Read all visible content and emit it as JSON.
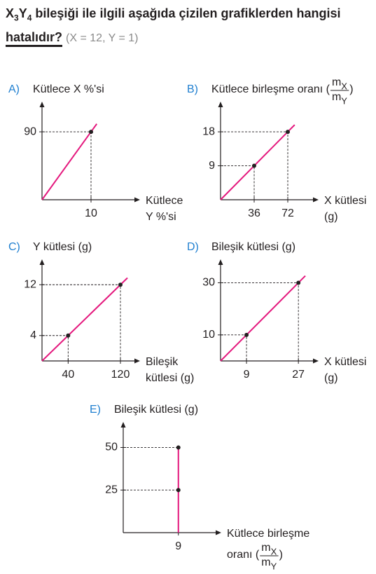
{
  "question": {
    "formula": [
      "X",
      "3",
      "Y",
      "4"
    ],
    "text": " bileşiği ile ilgili aşağıda çizilen grafiklerden hangisi",
    "emphasis": "hatalıdır?",
    "note": "(X = 12, Y = 1)"
  },
  "chart_data": [
    {
      "type": "line",
      "option": "A)",
      "y_label": "Kütlece X %'si",
      "x_label": [
        "Kütlece",
        "Y %'si"
      ],
      "x": [
        0,
        10
      ],
      "series": [
        {
          "color": "#e4187d",
          "values": [
            0,
            90
          ]
        }
      ],
      "xlim": [
        0,
        20
      ],
      "ylim": [
        0,
        130
      ],
      "xticks": [
        10
      ],
      "yticks": [
        90
      ]
    },
    {
      "type": "line",
      "option": "B)",
      "y_label": "Kütlece birleşme oranı (",
      "y_label_ratio": {
        "top": [
          "m",
          "X"
        ],
        "bottom": [
          "m",
          "Y"
        ]
      },
      "y_label_end": ")",
      "x_label": [
        "X kütlesi",
        "(g)"
      ],
      "x": [
        0,
        36,
        72
      ],
      "series": [
        {
          "color": "#e4187d",
          "values": [
            0,
            9,
            18
          ]
        }
      ],
      "xlim": [
        0,
        105
      ],
      "ylim": [
        0,
        26
      ],
      "xticks": [
        36,
        72
      ],
      "yticks": [
        9,
        18
      ]
    },
    {
      "type": "line",
      "option": "C)",
      "y_label": "Y kütlesi (g)",
      "x_label": [
        "Bileşik",
        "kütlesi (g)"
      ],
      "x": [
        0,
        40,
        120
      ],
      "series": [
        {
          "color": "#e4187d",
          "values": [
            0,
            4,
            12
          ]
        }
      ],
      "xlim": [
        0,
        150
      ],
      "ylim": [
        0,
        16
      ],
      "xticks": [
        40,
        120
      ],
      "yticks": [
        4,
        12
      ]
    },
    {
      "type": "line",
      "option": "D)",
      "y_label": "Bileşik kütlesi (g)",
      "x_label": [
        "X kütlesi",
        "(g)"
      ],
      "x": [
        0,
        9,
        27
      ],
      "series": [
        {
          "color": "#e4187d",
          "values": [
            0,
            10,
            30
          ]
        }
      ],
      "xlim": [
        0,
        34
      ],
      "ylim": [
        0,
        39
      ],
      "xticks": [
        9,
        27
      ],
      "yticks": [
        10,
        30
      ]
    },
    {
      "type": "line",
      "option": "E)",
      "y_label": "Bileşik kütlesi (g)",
      "x_label": [
        "Kütlece birleşme",
        "oranı ("
      ],
      "x_label_ratio": {
        "top": [
          "m",
          "X"
        ],
        "bottom": [
          "m",
          "Y"
        ]
      },
      "x_label_end": ")",
      "x": [
        9,
        9,
        9
      ],
      "series": [
        {
          "color": "#e4187d",
          "values": [
            0,
            25,
            50
          ]
        }
      ],
      "xlim": [
        0,
        16
      ],
      "ylim": [
        0,
        65
      ],
      "xticks": [
        9
      ],
      "yticks": [
        25,
        50
      ]
    }
  ]
}
